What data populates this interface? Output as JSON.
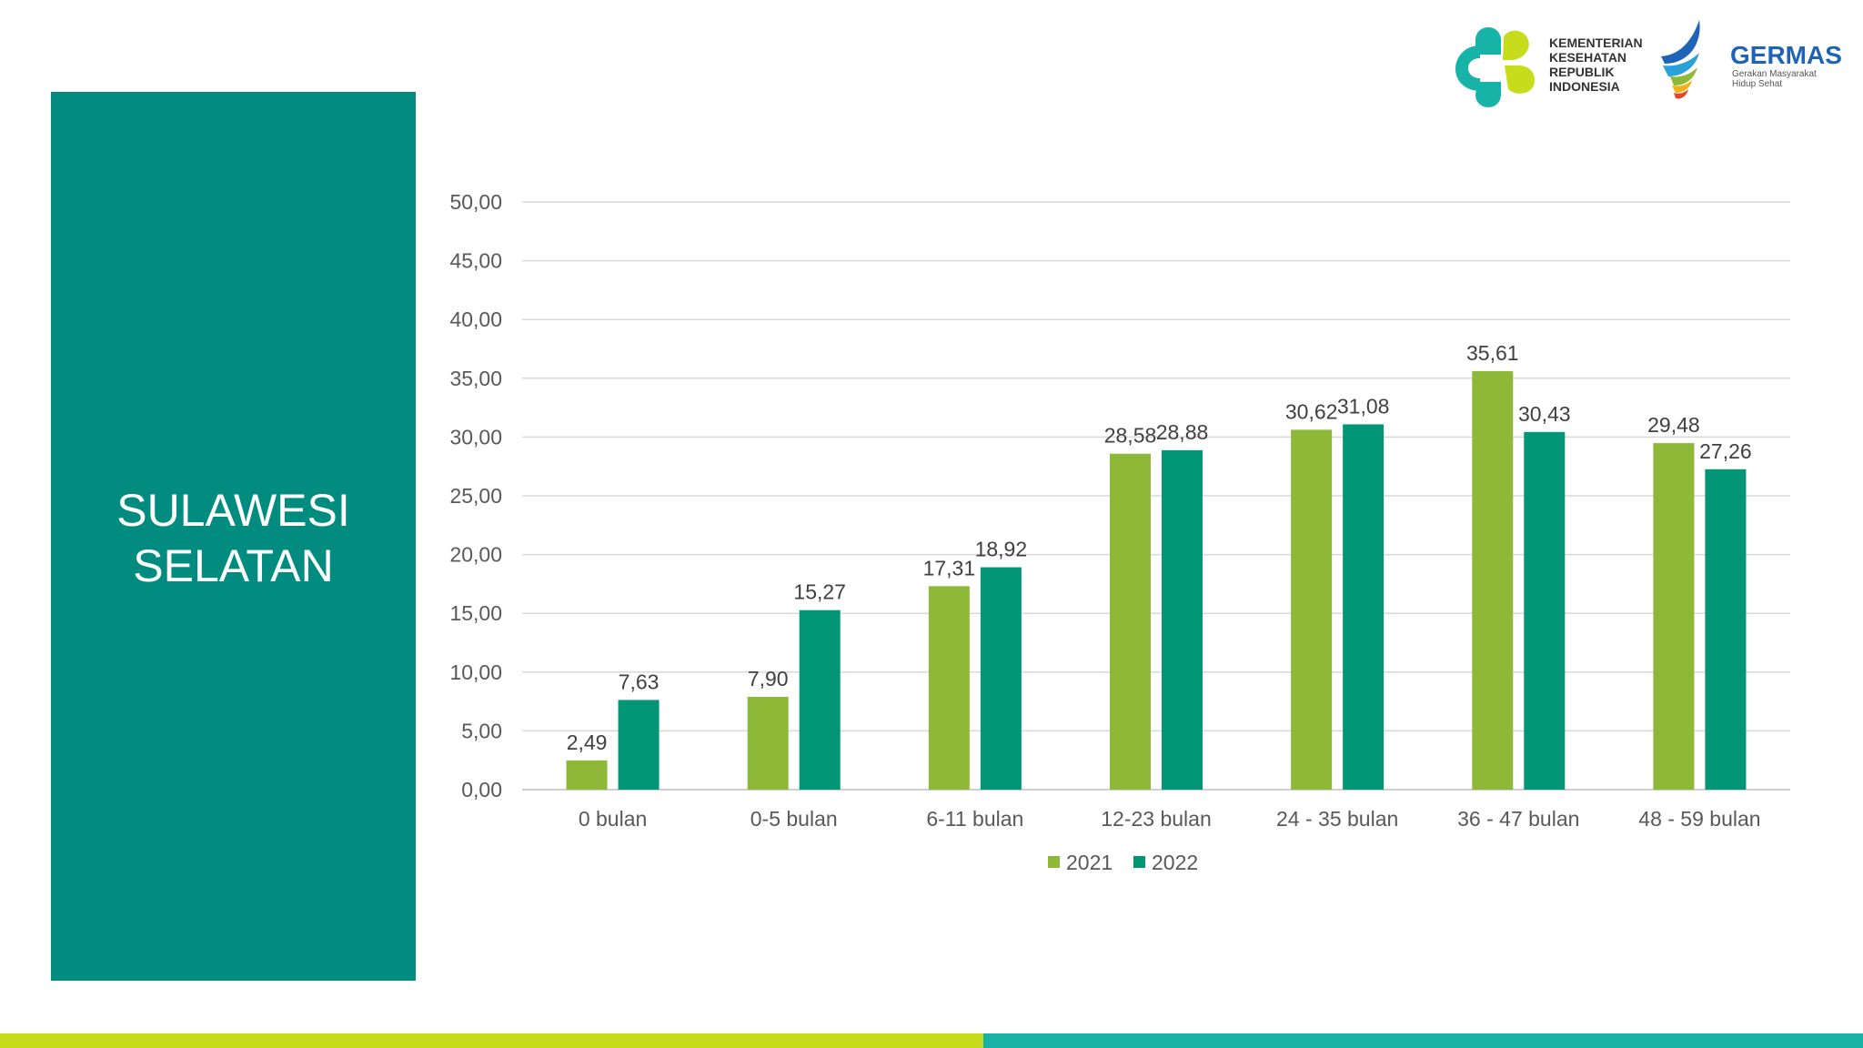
{
  "region": {
    "line1": "SULAWESI",
    "line2": "SELATAN"
  },
  "logos": {
    "kemenkes": [
      "KEMENTERIAN",
      "KESEHATAN",
      "REPUBLIK",
      "INDONESIA"
    ],
    "germas_title": "GERMAS",
    "germas_sub": [
      "Gerakan Masyarakat",
      "Hidup Sehat"
    ]
  },
  "colors": {
    "panel": "#028c80",
    "series2021": "#8db838",
    "series2022": "#029676",
    "accent_left": "#c8dc1e",
    "accent_right": "#17b3a6"
  },
  "chart_data": {
    "type": "bar",
    "title": "",
    "xlabel": "",
    "ylabel": "",
    "ylim": [
      0,
      50
    ],
    "yticks": [
      "0,00",
      "5,00",
      "10,00",
      "15,00",
      "20,00",
      "25,00",
      "30,00",
      "35,00",
      "40,00",
      "45,00",
      "50,00"
    ],
    "categories": [
      "0 bulan",
      "0-5 bulan",
      "6-11 bulan",
      "12-23 bulan",
      "24 - 35 bulan",
      "36 - 47 bulan",
      "48 - 59 bulan"
    ],
    "series": [
      {
        "name": "2021",
        "values": [
          2.49,
          7.9,
          17.31,
          28.58,
          30.62,
          35.61,
          29.48
        ],
        "labels": [
          "2,49",
          "7,90",
          "17,31",
          "28,58",
          "30,62",
          "35,61",
          "29,48"
        ],
        "color": "#8db838"
      },
      {
        "name": "2022",
        "values": [
          7.63,
          15.27,
          18.92,
          28.88,
          31.08,
          30.43,
          27.26
        ],
        "labels": [
          "7,63",
          "15,27",
          "18,92",
          "28,88",
          "31,08",
          "30,43",
          "27,26"
        ],
        "color": "#029676"
      }
    ],
    "grid": true,
    "legend": "bottom"
  }
}
